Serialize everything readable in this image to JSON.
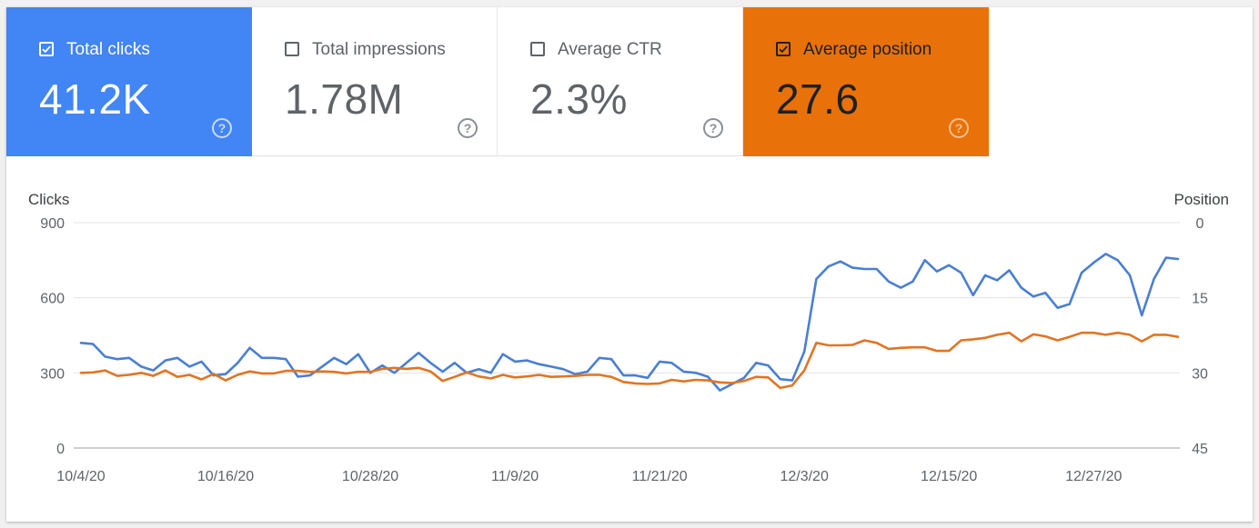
{
  "metrics": [
    {
      "label": "Total clicks",
      "value": "41.2K",
      "checked": true,
      "color": "#4285f4",
      "help": "?"
    },
    {
      "label": "Total impressions",
      "value": "1.78M",
      "checked": false,
      "color": "#ffffff",
      "help": "?"
    },
    {
      "label": "Average CTR",
      "value": "2.3%",
      "checked": false,
      "color": "#ffffff",
      "help": "?"
    },
    {
      "label": "Average position",
      "value": "27.6",
      "checked": true,
      "color": "#e8710a",
      "help": "?"
    }
  ],
  "chart_data": {
    "type": "line",
    "left_axis_title": "Clicks",
    "right_axis_title": "Position",
    "left_ticks": [
      "900",
      "600",
      "300",
      "0"
    ],
    "right_ticks": [
      "0",
      "15",
      "30",
      "45"
    ],
    "x_ticks": [
      "10/4/20",
      "10/16/20",
      "10/28/20",
      "11/9/20",
      "11/21/20",
      "12/3/20",
      "12/15/20",
      "12/27/20"
    ],
    "ylim_left": [
      0,
      900
    ],
    "ylim_right": [
      45,
      0
    ],
    "grid": true,
    "series": [
      {
        "axis": "left",
        "color": "#4a7fd1",
        "values": [
          420,
          415,
          365,
          355,
          360,
          325,
          310,
          350,
          360,
          325,
          345,
          290,
          295,
          340,
          400,
          360,
          360,
          355,
          285,
          290,
          325,
          360,
          335,
          375,
          300,
          330,
          300,
          340,
          380,
          340,
          305,
          340,
          300,
          315,
          300,
          375,
          345,
          350,
          335,
          325,
          315,
          295,
          305,
          360,
          355,
          290,
          290,
          280,
          345,
          340,
          305,
          300,
          285,
          230,
          255,
          280,
          340,
          330,
          275,
          270,
          385,
          675,
          725,
          745,
          720,
          715,
          715,
          665,
          640,
          665,
          750,
          705,
          730,
          700,
          610,
          690,
          670,
          710,
          640,
          605,
          620,
          560,
          575,
          700,
          740,
          775,
          750,
          690,
          530,
          675,
          760,
          755
        ]
      },
      {
        "axis": "right",
        "color": "#e07523",
        "values": [
          30.0,
          29.9,
          29.5,
          30.6,
          30.4,
          30.0,
          30.6,
          29.5,
          30.8,
          30.4,
          31.3,
          30.2,
          31.5,
          30.4,
          29.7,
          30.1,
          30.1,
          29.6,
          29.6,
          29.8,
          29.7,
          29.8,
          30.1,
          29.8,
          29.8,
          29.2,
          29.0,
          29.2,
          29.0,
          29.7,
          31.6,
          30.8,
          29.9,
          30.7,
          31.1,
          30.4,
          30.9,
          30.7,
          30.4,
          30.8,
          30.7,
          30.6,
          30.4,
          30.4,
          30.8,
          31.8,
          32.1,
          32.2,
          32.1,
          31.4,
          31.7,
          31.4,
          31.5,
          31.9,
          32.0,
          31.6,
          30.8,
          30.9,
          33.0,
          32.5,
          29.5,
          24.0,
          24.5,
          24.5,
          24.4,
          23.5,
          24.0,
          25.2,
          25.0,
          24.9,
          24.9,
          25.6,
          25.6,
          23.5,
          23.3,
          23.0,
          22.4,
          22.0,
          23.7,
          22.3,
          22.7,
          23.5,
          22.8,
          22.0,
          22.0,
          22.4,
          22.0,
          22.4,
          23.7,
          22.4,
          22.4,
          22.8
        ]
      }
    ]
  }
}
